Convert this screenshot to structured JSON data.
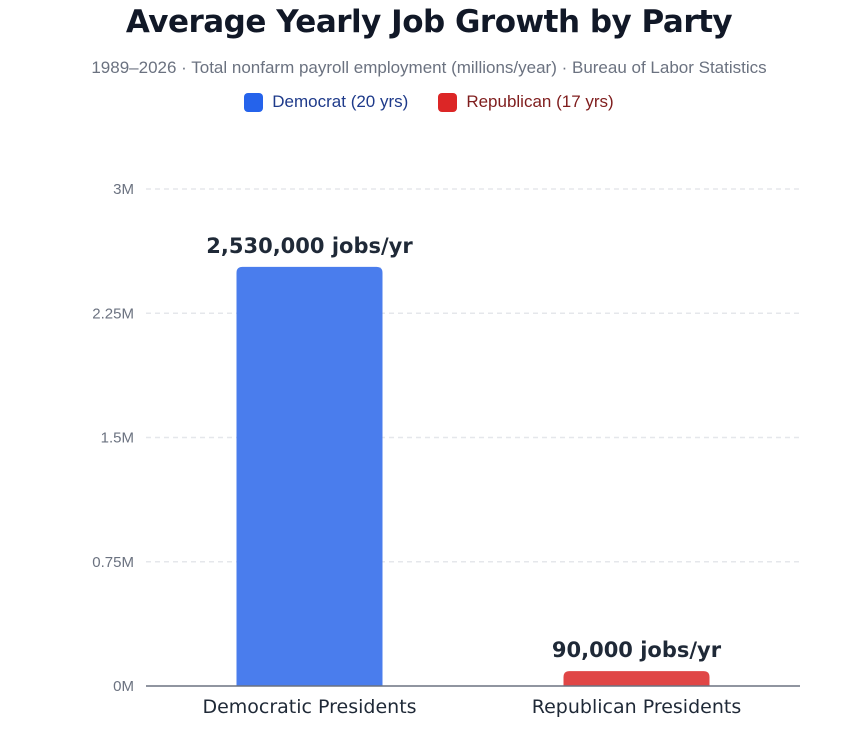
{
  "chart_data": {
    "type": "bar",
    "title": "Average Yearly Job Growth by Party",
    "subtitle": "1989–2026 · Total nonfarm payroll employment (millions/year) · Bureau of Labor Statistics",
    "categories": [
      "Democratic Presidents",
      "Republican Presidents"
    ],
    "values": [
      2530000,
      90000
    ],
    "data_labels": [
      "2,530,000 jobs/yr",
      "90,000 jobs/yr"
    ],
    "bar_colors": [
      "#4a7ded",
      "#e04646"
    ],
    "legend": [
      {
        "label": "Democrat (20 yrs)",
        "color": "#2563eb",
        "text_color": "#1e3a8a"
      },
      {
        "label": "Republican (17 yrs)",
        "color": "#dc2626",
        "text_color": "#7f1d1d"
      }
    ],
    "legend_position": "top-center",
    "yticks": [
      0,
      750000,
      1500000,
      2250000,
      3000000
    ],
    "ytick_labels": [
      "0M",
      "0.75M",
      "1.5M",
      "2.25M",
      "3M"
    ],
    "ylim": [
      0,
      3000000
    ],
    "grid": true
  }
}
